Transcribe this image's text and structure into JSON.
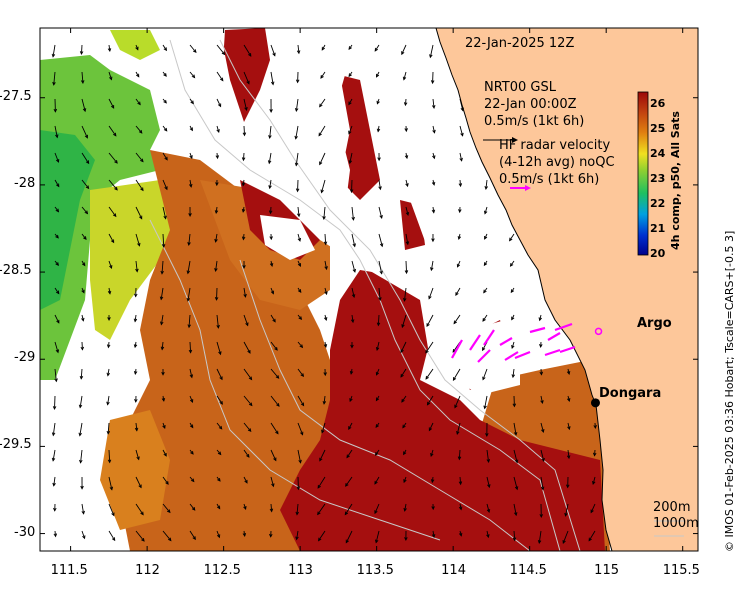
{
  "title": "22-Jan-2025 12Z",
  "model_label": {
    "line1": "NRT00 GSL",
    "line2": "22-Jan 00:00Z",
    "line3": "0.5m/s (1kt 6h)"
  },
  "radar_label": {
    "line1": "HF radar velocity",
    "line2": "(4-12h avg) noQC",
    "line3": "0.5m/s (1kt 6h)"
  },
  "places": [
    {
      "name": "Argo",
      "lon": 114.95,
      "lat": -28.84,
      "symbol": "circle",
      "color": "#ff00ff"
    },
    {
      "name": "Dongara",
      "lon": 114.93,
      "lat": -29.25,
      "symbol": "dot",
      "color": "#000000"
    }
  ],
  "isobaths": [
    "200m",
    "1000m"
  ],
  "colorbar": {
    "title": "4h comp, p50, All Sats",
    "ticks": [
      "26",
      "25",
      "24",
      "23",
      "22",
      "21",
      "20"
    ],
    "min": 20,
    "max": 26.5
  },
  "axes": {
    "x_ticks": [
      "111.5",
      "112",
      "112.5",
      "113",
      "113.5",
      "114",
      "114.5",
      "115",
      "115.5"
    ],
    "y_ticks": [
      "-27.5",
      "-28",
      "-28.5",
      "-29",
      "-29.5",
      "-30"
    ],
    "lon_range": [
      111.3,
      115.6
    ],
    "lat_range": [
      -30.1,
      -27.1
    ]
  },
  "caption": "© IMOS 01-Feb-2025 03:36 Hobart; Tscale=CARS+[-0.5 3]",
  "colors": {
    "land": "#fdc79a",
    "hot": "#a50f0f",
    "warm": "#c85a12",
    "radar": "#ff00ff"
  }
}
